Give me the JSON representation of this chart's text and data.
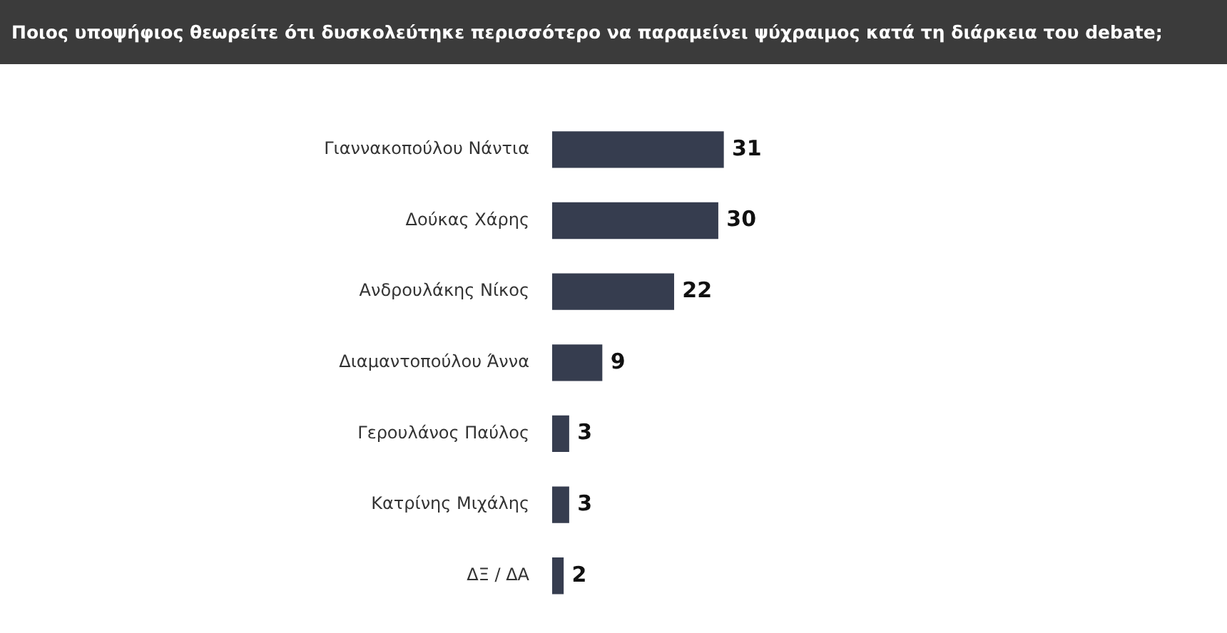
{
  "chart_data": {
    "type": "bar",
    "orientation": "horizontal",
    "title": "Ποιος υποψήφιος θεωρείτε ότι δυσκολεύτηκε περισσότερο να παραμείνει ψύχραιμος κατά τη διάρκεια του debate;",
    "categories": [
      "Γιαννακοπούλου Νάντια",
      "Δούκας Χάρης",
      "Ανδρουλάκης Νίκος",
      "Διαμαντοπούλου Άννα",
      "Γερουλάνος Παύλος",
      "Κατρίνης Μιχάλης",
      "ΔΞ / ΔΑ"
    ],
    "values": [
      31,
      30,
      22,
      9,
      3,
      3,
      2
    ],
    "color": "#363d4f",
    "tick_labels": "y",
    "legend": false,
    "data_labels": true
  }
}
